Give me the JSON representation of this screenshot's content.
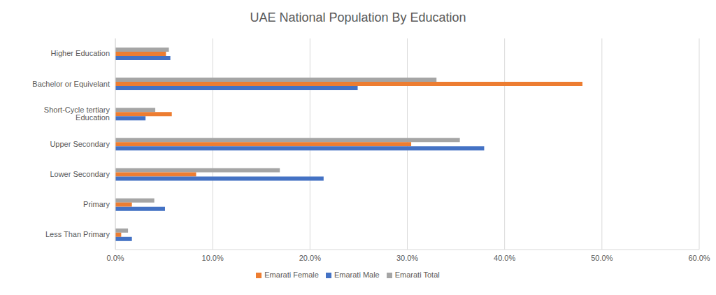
{
  "chart_data": {
    "type": "bar",
    "title": "UAE National Population By Education",
    "orientation": "horizontal",
    "grid": true,
    "legend": "bottom",
    "categories": [
      "Higher Education",
      "Bachelor or Equivelant",
      "Short-Cycle tertiary Education",
      "Upper Secondary",
      "Lower Secondary",
      "Primary",
      "Less Than Primary"
    ],
    "series": [
      {
        "name": "Emarati Total",
        "color": "#a5a5a5",
        "values": [
          5.5,
          33.0,
          4.1,
          35.4,
          16.9,
          4.0,
          1.3
        ]
      },
      {
        "name": "Emarati Female",
        "color": "#ed7d31",
        "values": [
          5.2,
          48.0,
          5.8,
          30.4,
          8.3,
          1.7,
          0.6
        ]
      },
      {
        "name": "Emarati Male",
        "color": "#4472c4",
        "values": [
          5.65,
          24.9,
          3.1,
          37.9,
          21.4,
          5.1,
          1.7
        ]
      }
    ],
    "xlim": [
      0,
      60
    ],
    "xticks": [
      {
        "value": 0,
        "label": "0.0%"
      },
      {
        "value": 10,
        "label": "10.0%"
      },
      {
        "value": 20,
        "label": "20.0%"
      },
      {
        "value": 30,
        "label": "30.0%"
      },
      {
        "value": 40,
        "label": "40.0%"
      },
      {
        "value": 50,
        "label": "50.0%"
      },
      {
        "value": 60,
        "label": "60.0%"
      }
    ]
  }
}
